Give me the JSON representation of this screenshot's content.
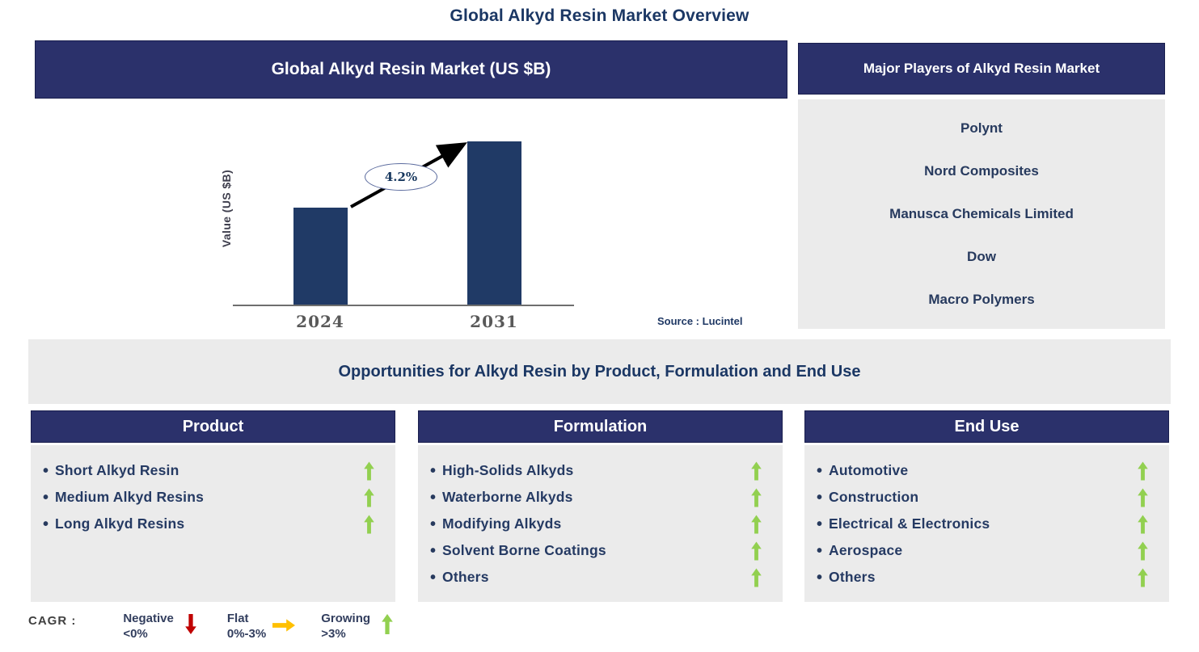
{
  "title": "Global Alkyd Resin Market Overview",
  "chart_panel": {
    "header": "Global Alkyd Resin Market (US $B)",
    "ylabel": "Value (US $B)",
    "cagr_badge": "4.2%",
    "source": "Source : Lucintel"
  },
  "chart_data": {
    "type": "bar",
    "title": "Global Alkyd Resin Market (US $B)",
    "xlabel": "",
    "ylabel": "Value (US $B)",
    "categories": [
      "2024",
      "2031"
    ],
    "values_relative": [
      0.594,
      1.0
    ],
    "cagr": "4.2%",
    "bar_color": "#203A66",
    "grid": "off",
    "note": "no numeric y-axis ticks shown; bar heights are relative"
  },
  "players_panel": {
    "header": "Major Players of Alkyd Resin Market",
    "companies": [
      "Polynt",
      "Nord Composites",
      "Manusca Chemicals Limited",
      "Dow",
      "Macro Polymers"
    ]
  },
  "opportunities": {
    "banner": "Opportunities for Alkyd Resin by Product, Formulation and End Use"
  },
  "segments": [
    {
      "header": "Product",
      "items": [
        {
          "label": "Short Alkyd Resin",
          "trend": "growing"
        },
        {
          "label": "Medium Alkyd Resins",
          "trend": "growing"
        },
        {
          "label": "Long Alkyd Resins",
          "trend": "growing"
        }
      ]
    },
    {
      "header": "Formulation",
      "items": [
        {
          "label": "High-Solids Alkyds",
          "trend": "growing"
        },
        {
          "label": "Waterborne Alkyds",
          "trend": "growing"
        },
        {
          "label": "Modifying Alkyds",
          "trend": "growing"
        },
        {
          "label": "Solvent Borne Coatings",
          "trend": "growing"
        },
        {
          "label": "Others",
          "trend": "growing"
        }
      ]
    },
    {
      "header": "End Use",
      "items": [
        {
          "label": "Automotive",
          "trend": "growing"
        },
        {
          "label": "Construction",
          "trend": "growing"
        },
        {
          "label": "Electrical & Electronics",
          "trend": "growing"
        },
        {
          "label": "Aerospace",
          "trend": "growing"
        },
        {
          "label": "Others",
          "trend": "growing"
        }
      ]
    }
  ],
  "legend": {
    "prefix": "CAGR :",
    "entries": [
      {
        "label": "Negative",
        "range": "<0%",
        "direction": "down",
        "color": "#C00000"
      },
      {
        "label": "Flat",
        "range": "0%-3%",
        "direction": "right",
        "color": "#FFC000"
      },
      {
        "label": "Growing",
        "range": ">3%",
        "direction": "up",
        "color": "#92D050"
      }
    ]
  },
  "colors": {
    "header_navy": "#2B316B",
    "bar_navy": "#203A66",
    "panel_gray": "#EBEBEB",
    "text_navy": "#1F3864",
    "growing_green": "#92D050",
    "negative_red": "#C00000",
    "flat_orange": "#FFC000"
  }
}
